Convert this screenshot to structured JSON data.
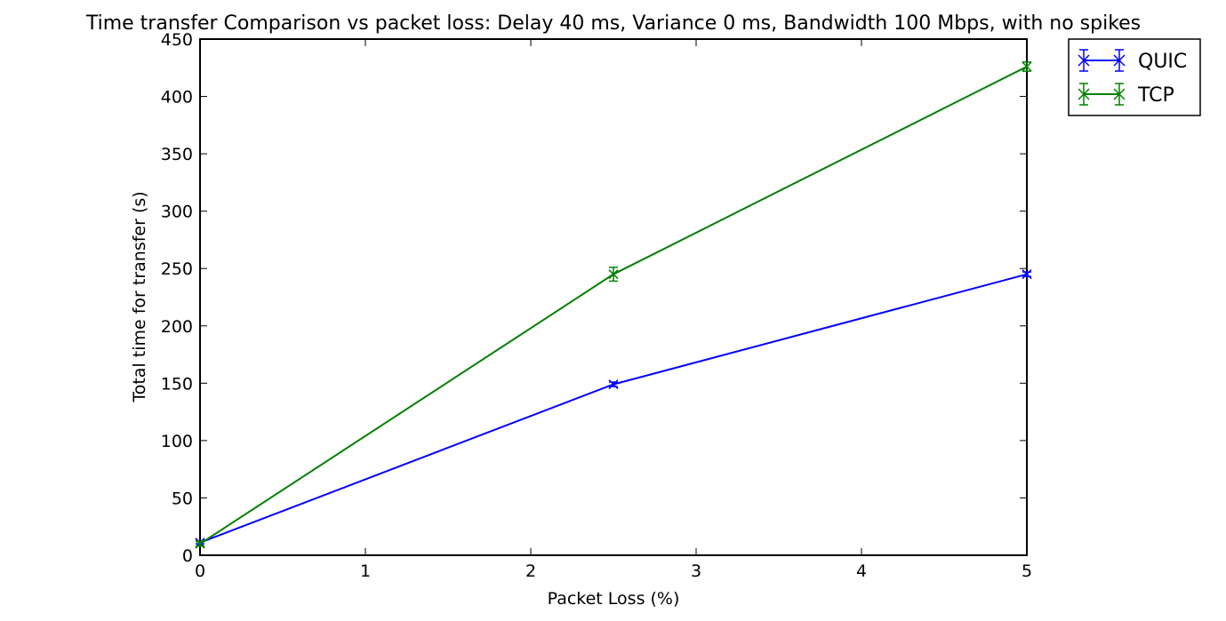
{
  "chart_data": {
    "type": "line",
    "title": "Time transfer Comparison vs packet loss: Delay 40 ms, Variance 0 ms, Bandwidth 100 Mbps, with no spikes",
    "xlabel": "Packet Loss (%)",
    "ylabel": "Total time for transfer (s)",
    "xlim": [
      0,
      5
    ],
    "ylim": [
      0,
      450
    ],
    "xticks": [
      0,
      1,
      2,
      3,
      4,
      5
    ],
    "yticks": [
      0,
      50,
      100,
      150,
      200,
      250,
      300,
      350,
      400,
      450
    ],
    "grid": false,
    "legend_position": "outside-top-right",
    "x": [
      0,
      2.5,
      5
    ],
    "series": [
      {
        "name": "QUIC",
        "color": "#0000ff",
        "marker": "x",
        "values": [
          11,
          149,
          245
        ],
        "errors": [
          1,
          2,
          2
        ]
      },
      {
        "name": "TCP",
        "color": "#008000",
        "marker": "x",
        "values": [
          10,
          245,
          426
        ],
        "errors": [
          2,
          6,
          4
        ]
      }
    ]
  }
}
